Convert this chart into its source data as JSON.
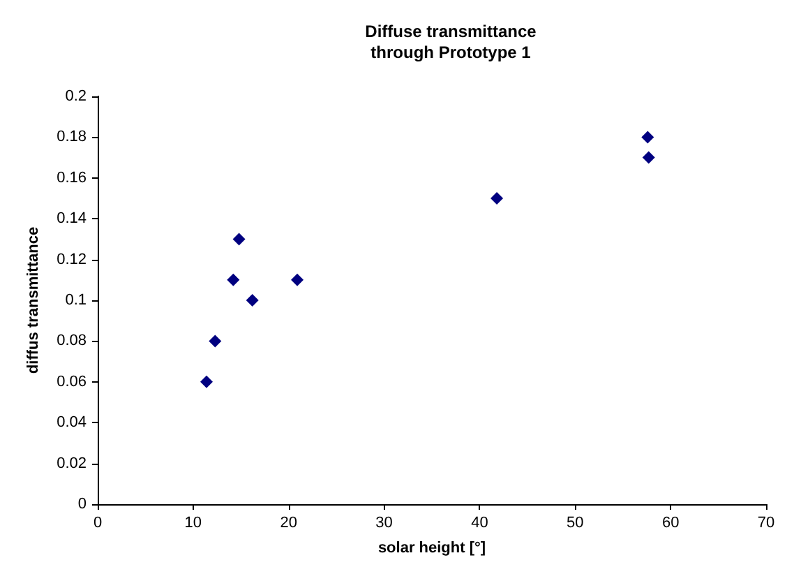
{
  "chart_data": {
    "type": "scatter",
    "title": "Diffuse transmittance\nthrough Prototype 1",
    "xlabel": "solar height [°]",
    "ylabel": "diffus transmittance",
    "x": [
      11.4,
      12.3,
      14.2,
      14.8,
      16.2,
      20.9,
      41.8,
      57.6,
      57.7
    ],
    "series": [
      {
        "color": "#000080",
        "values": [
          0.06,
          0.08,
          0.11,
          0.13,
          0.1,
          0.11,
          0.15,
          0.18,
          0.17
        ]
      }
    ],
    "xlim": [
      0,
      70
    ],
    "xticks": [
      0,
      10,
      20,
      30,
      40,
      50,
      60,
      70
    ],
    "ylim": [
      0,
      0.2
    ],
    "yticks": [
      0,
      0.02,
      0.04,
      0.06,
      0.08,
      0.1,
      0.12,
      0.14,
      0.16,
      0.18,
      0.2
    ],
    "marker": "diamond",
    "grid": false
  }
}
